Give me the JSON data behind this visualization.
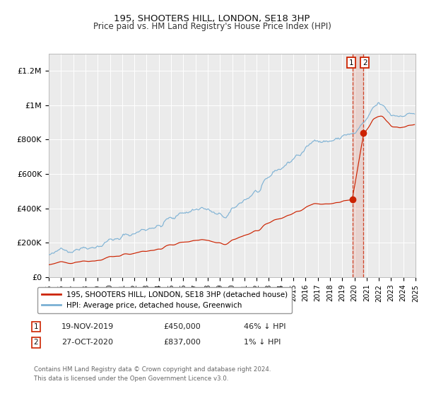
{
  "title": "195, SHOOTERS HILL, LONDON, SE18 3HP",
  "subtitle": "Price paid vs. HM Land Registry's House Price Index (HPI)",
  "background_color": "#ffffff",
  "plot_bg_color": "#ebebeb",
  "grid_color": "#ffffff",
  "hpi_color": "#7ab0d4",
  "price_color": "#cc2200",
  "point1_price": 450000,
  "point2_price": 837000,
  "point1_label": "19-NOV-2019",
  "point2_label": "27-OCT-2020",
  "point1_pct": "46% ↓ HPI",
  "point2_pct": "1% ↓ HPI",
  "legend_line1": "195, SHOOTERS HILL, LONDON, SE18 3HP (detached house)",
  "legend_line2": "HPI: Average price, detached house, Greenwich",
  "footer": "Contains HM Land Registry data © Crown copyright and database right 2024.\nThis data is licensed under the Open Government Licence v3.0.",
  "ylim": [
    0,
    1300000
  ],
  "yticks": [
    0,
    200000,
    400000,
    600000,
    800000,
    1000000,
    1200000
  ],
  "ytick_labels": [
    "£0",
    "£200K",
    "£400K",
    "£600K",
    "£800K",
    "£1M",
    "£1.2M"
  ],
  "start_year": 1995,
  "end_year": 2025
}
